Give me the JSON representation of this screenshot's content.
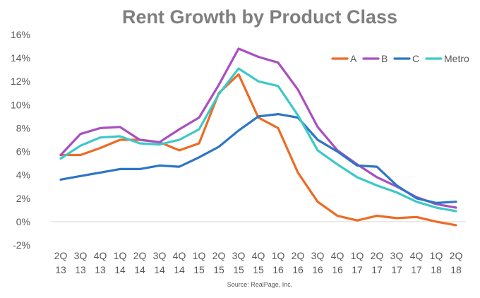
{
  "chart_data": {
    "type": "line",
    "title": "Rent Growth by Product Class",
    "source": "Source: RealPage, Inc.",
    "ylim": [
      -0.02,
      0.16
    ],
    "yticks": [
      {
        "value": 0.16,
        "label": "16%"
      },
      {
        "value": 0.14,
        "label": "14%"
      },
      {
        "value": 0.12,
        "label": "12%"
      },
      {
        "value": 0.1,
        "label": "10%"
      },
      {
        "value": 0.08,
        "label": "8%"
      },
      {
        "value": 0.06,
        "label": "6%"
      },
      {
        "value": 0.04,
        "label": "4%"
      },
      {
        "value": 0.02,
        "label": "2%"
      },
      {
        "value": 0.0,
        "label": "0%"
      },
      {
        "value": -0.02,
        "label": "-2%"
      }
    ],
    "grid": true,
    "legend_position": "top-right",
    "categories": [
      {
        "q": "2Q",
        "y": "13"
      },
      {
        "q": "3Q",
        "y": "13"
      },
      {
        "q": "4Q",
        "y": "13"
      },
      {
        "q": "1Q",
        "y": "14"
      },
      {
        "q": "2Q",
        "y": "14"
      },
      {
        "q": "3Q",
        "y": "14"
      },
      {
        "q": "4Q",
        "y": "14"
      },
      {
        "q": "1Q",
        "y": "15"
      },
      {
        "q": "2Q",
        "y": "15"
      },
      {
        "q": "3Q",
        "y": "15"
      },
      {
        "q": "4Q",
        "y": "15"
      },
      {
        "q": "1Q",
        "y": "16"
      },
      {
        "q": "2Q",
        "y": "16"
      },
      {
        "q": "3Q",
        "y": "16"
      },
      {
        "q": "4Q",
        "y": "16"
      },
      {
        "q": "1Q",
        "y": "17"
      },
      {
        "q": "2Q",
        "y": "17"
      },
      {
        "q": "3Q",
        "y": "17"
      },
      {
        "q": "4Q",
        "y": "17"
      },
      {
        "q": "1Q",
        "y": "18"
      },
      {
        "q": "2Q",
        "y": "18"
      }
    ],
    "series": [
      {
        "name": "A",
        "color": "#ed6b24",
        "values": [
          0.057,
          0.057,
          0.063,
          0.07,
          0.07,
          0.068,
          0.061,
          0.067,
          0.11,
          0.126,
          0.089,
          0.08,
          0.042,
          0.017,
          0.005,
          0.001,
          0.005,
          0.003,
          0.004,
          0.0,
          -0.003
        ]
      },
      {
        "name": "B",
        "color": "#a94fc0",
        "values": [
          0.057,
          0.075,
          0.08,
          0.081,
          0.07,
          0.068,
          0.079,
          0.089,
          0.117,
          0.148,
          0.141,
          0.136,
          0.113,
          0.081,
          0.061,
          0.049,
          0.038,
          0.03,
          0.021,
          0.015,
          0.012
        ]
      },
      {
        "name": "C",
        "color": "#2e75c6",
        "values": [
          0.036,
          0.039,
          0.042,
          0.045,
          0.045,
          0.048,
          0.047,
          0.055,
          0.064,
          0.078,
          0.09,
          0.092,
          0.089,
          0.07,
          0.06,
          0.048,
          0.047,
          0.031,
          0.02,
          0.016,
          0.017
        ]
      },
      {
        "name": "Metro",
        "color": "#3ec8c8",
        "values": [
          0.054,
          0.065,
          0.072,
          0.073,
          0.067,
          0.066,
          0.07,
          0.079,
          0.109,
          0.131,
          0.12,
          0.116,
          0.091,
          0.061,
          0.049,
          0.038,
          0.031,
          0.025,
          0.017,
          0.012,
          0.009
        ]
      }
    ]
  }
}
